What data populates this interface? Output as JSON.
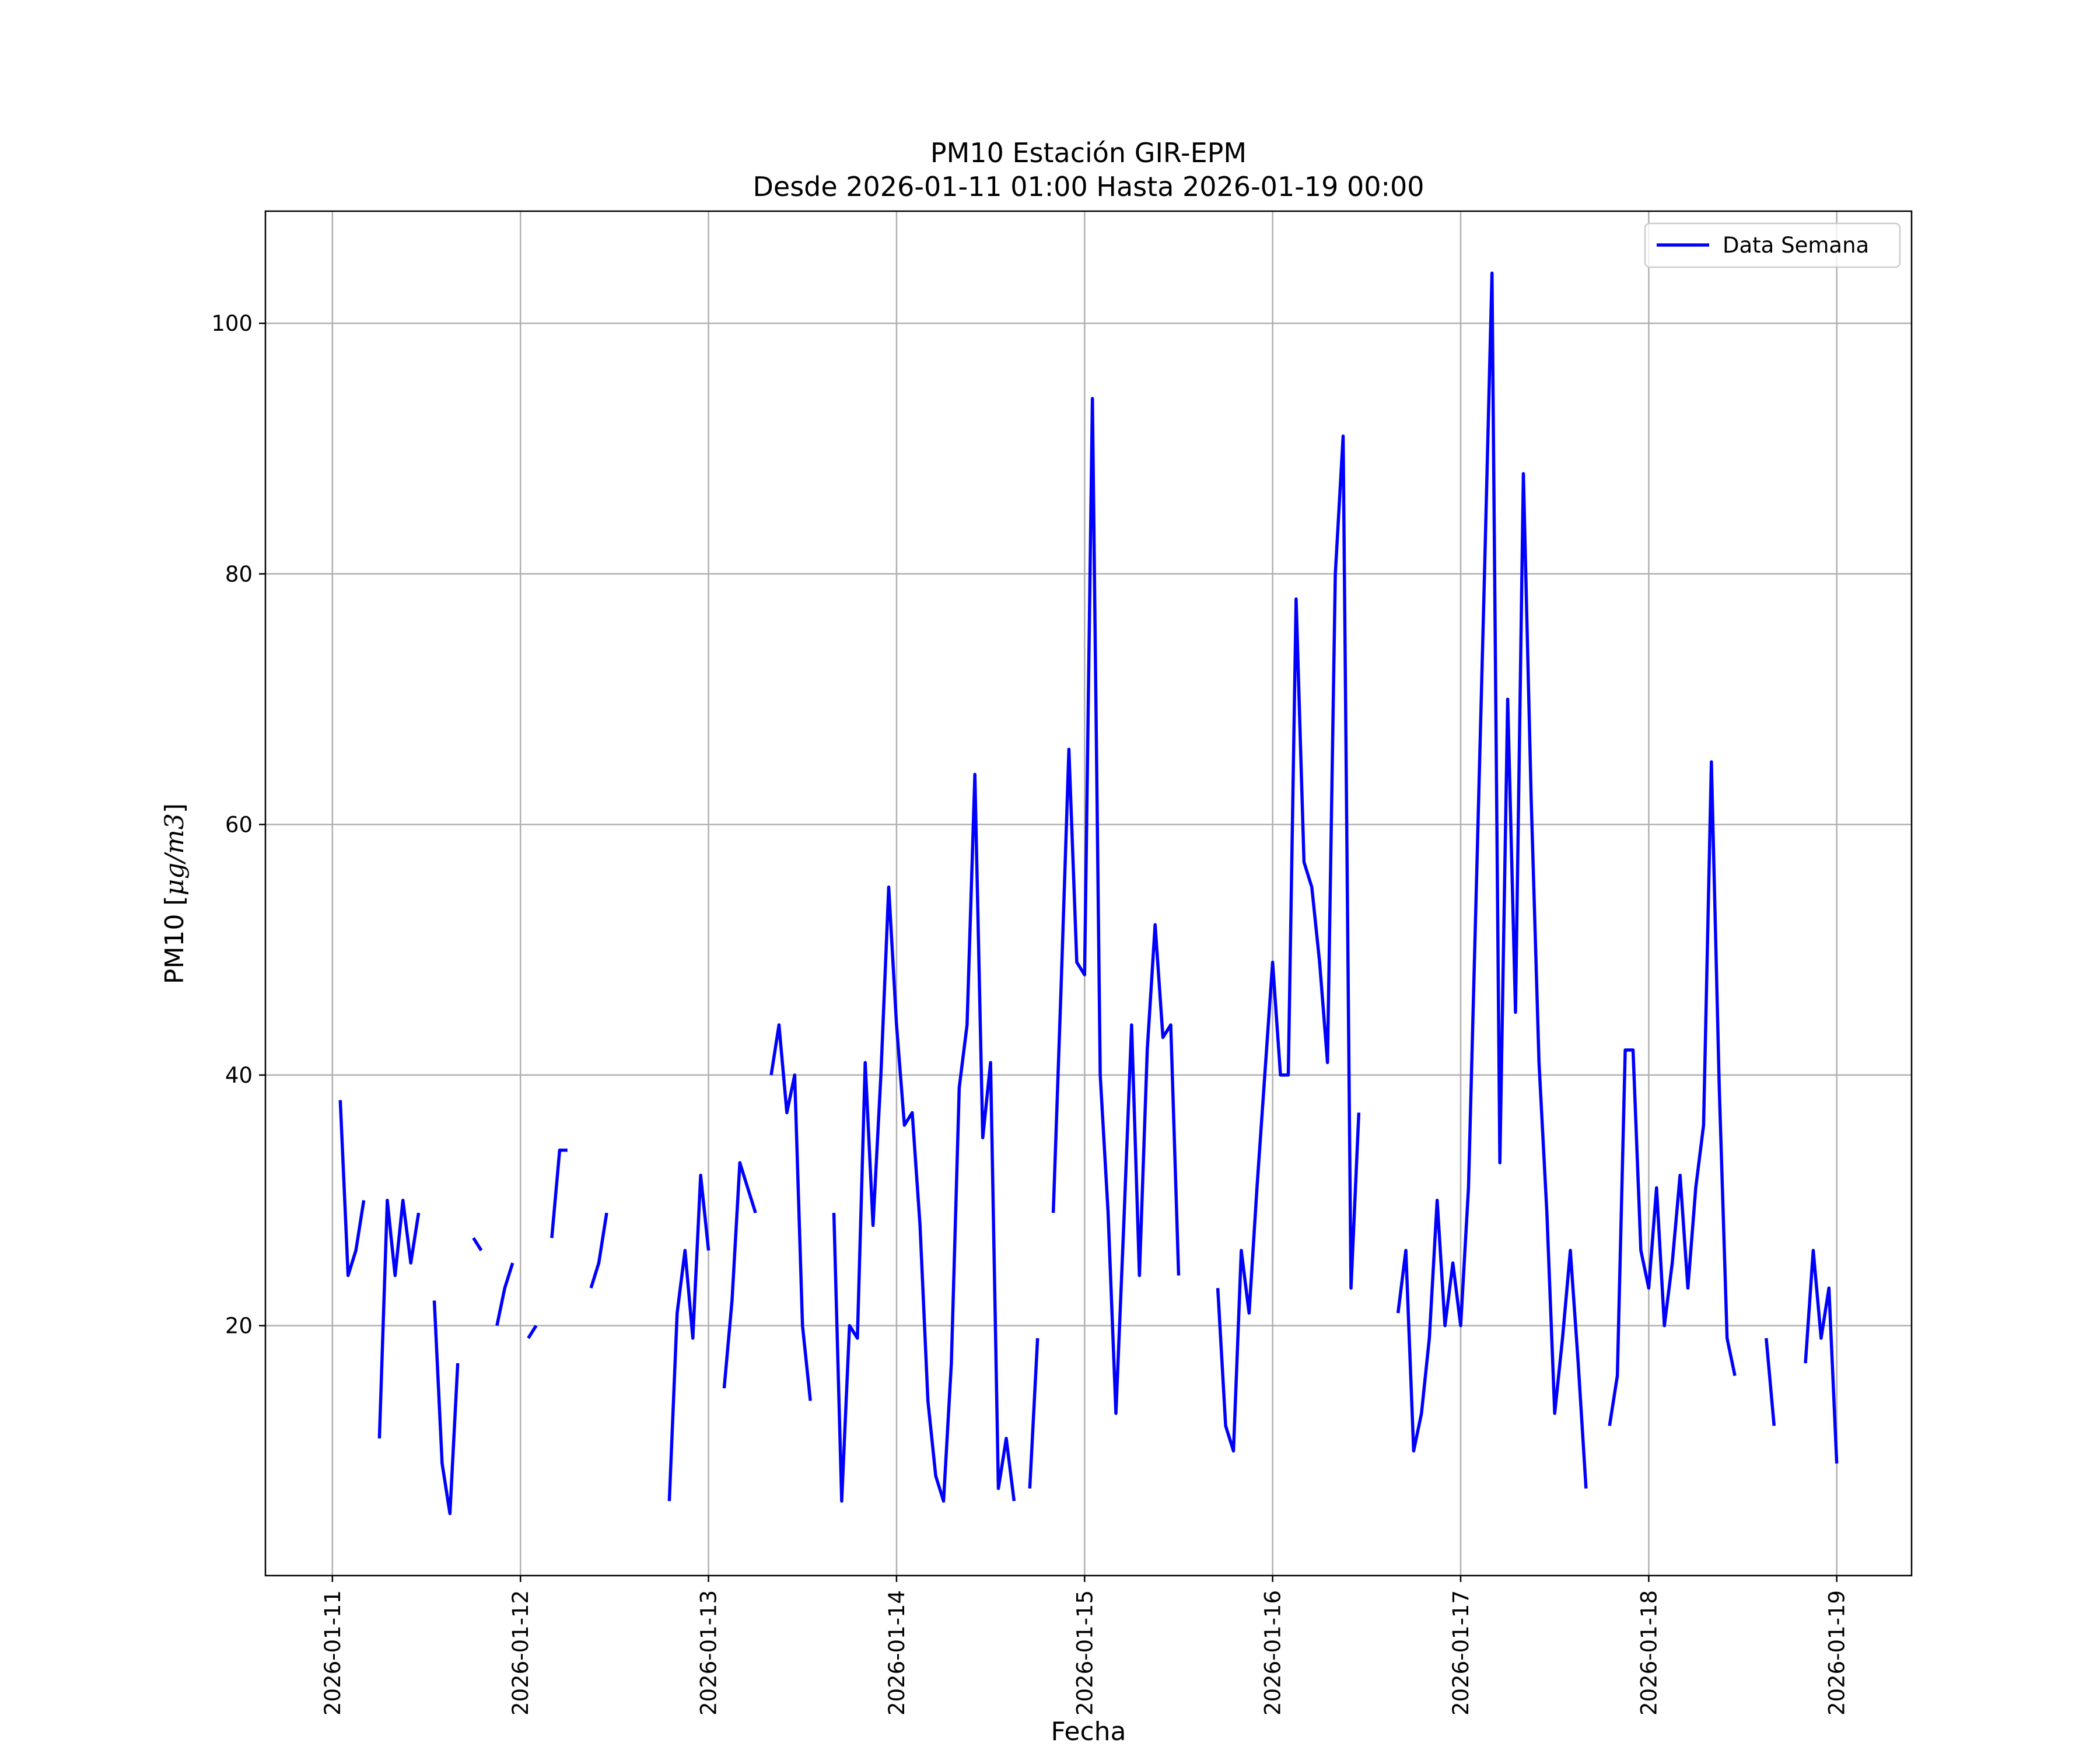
{
  "chart_data": {
    "type": "line",
    "title": "PM10 Estación GIR-EPM",
    "subtitle": "Desde 2026-01-11 01:00 Hasta 2026-01-19 00:00",
    "xlabel": "Fecha",
    "ylabel_prefix": "PM10 [",
    "ylabel_math": "μg/m3",
    "ylabel_suffix": "]",
    "ylim": [
      0.05,
      108.95
    ],
    "yticks": [
      20,
      40,
      60,
      80,
      100
    ],
    "xticks": [
      "2026-01-11",
      "2026-01-12",
      "2026-01-13",
      "2026-01-14",
      "2026-01-15",
      "2026-01-16",
      "2026-01-17",
      "2026-01-18",
      "2026-01-19"
    ],
    "x_range": [
      "2026-01-11 01:00",
      "2026-01-19 00:00"
    ],
    "x_sampling": "hourly",
    "grid": true,
    "legend_position": "top-right",
    "series": [
      {
        "name": "Data Semana",
        "color": "#0000ff",
        "values_by_day_hour": {
          "2026-01-11": [
            null,
            38,
            24,
            26,
            30,
            null,
            11,
            30,
            24,
            30,
            25,
            29,
            null,
            22,
            9,
            5,
            17,
            null,
            27,
            26,
            null,
            20,
            23,
            25
          ],
          "2026-01-12": [
            null,
            19,
            20,
            null,
            27,
            34,
            34,
            null,
            null,
            23,
            25,
            29,
            null,
            null,
            null,
            null,
            null,
            null,
            null,
            6,
            21,
            26,
            19,
            32
          ],
          "2026-01-13": [
            26,
            null,
            15,
            22,
            33,
            31,
            29,
            null,
            40,
            44,
            37,
            40,
            20,
            14,
            null,
            null,
            29,
            6,
            20,
            19,
            41,
            28,
            40,
            55
          ],
          "2026-01-14": [
            44,
            36,
            37,
            28,
            14,
            8,
            6,
            17,
            39,
            44,
            64,
            35,
            41,
            7,
            11,
            6,
            null,
            7,
            19,
            null,
            29,
            47,
            66,
            49
          ],
          "2026-01-15": [
            48,
            94,
            40,
            29,
            13,
            28,
            44,
            24,
            42,
            52,
            43,
            44,
            24,
            null,
            null,
            null,
            null,
            23,
            12,
            10,
            26,
            21,
            31,
            40
          ],
          "2026-01-16": [
            49,
            40,
            40,
            78,
            57,
            55,
            49,
            41,
            80,
            91,
            23,
            37,
            null,
            null,
            null,
            null,
            21,
            26,
            10,
            13,
            19,
            30,
            20,
            25
          ],
          "2026-01-17": [
            20,
            31,
            55,
            79,
            104,
            33,
            70,
            45,
            88,
            62,
            41,
            29,
            13,
            19,
            26,
            17,
            7,
            null,
            null,
            12,
            16,
            42,
            42,
            26
          ],
          "2026-01-18": [
            23,
            31,
            20,
            25,
            32,
            23,
            31,
            36,
            65,
            39,
            19,
            16,
            null,
            null,
            null,
            19,
            12,
            null,
            null,
            null,
            17,
            26,
            19,
            23
          ],
          "2026-01-19": [
            9
          ]
        }
      }
    ]
  }
}
